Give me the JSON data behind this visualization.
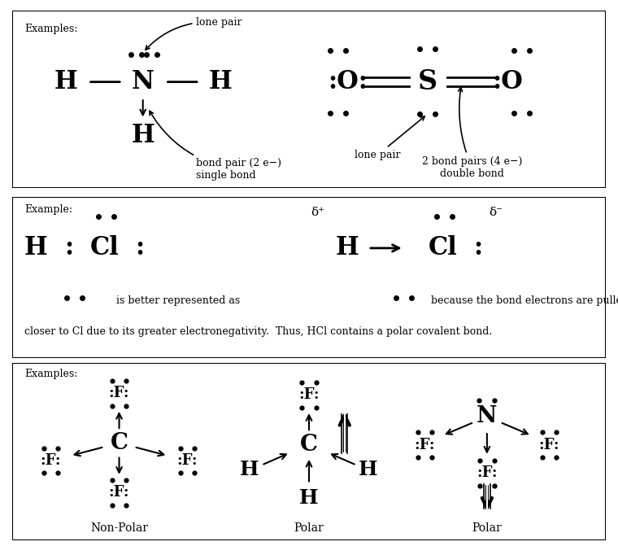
{
  "bg_color": "#ffffff",
  "border_color": "#000000",
  "text_color": "#000000",
  "panel1_label": "Examples:",
  "panel2_label": "Example:",
  "panel3_label": "Examples:",
  "nonpolar_label": "Non-Polar",
  "polar1_label": "Polar",
  "polar2_label": "Polar",
  "bond_pair_text": "bond pair (2 e−)\nsingle bond",
  "double_bond_text": "2 bond pairs (4 e−)\ndouble bond",
  "lone_pair_text": "lone pair",
  "hcl_text1": "is better represented as",
  "hcl_text2": "because the bond electrons are pulled",
  "hcl_text3": "closer to Cl due to its greater electronegativity.  Thus, HCl contains a polar covalent bond."
}
